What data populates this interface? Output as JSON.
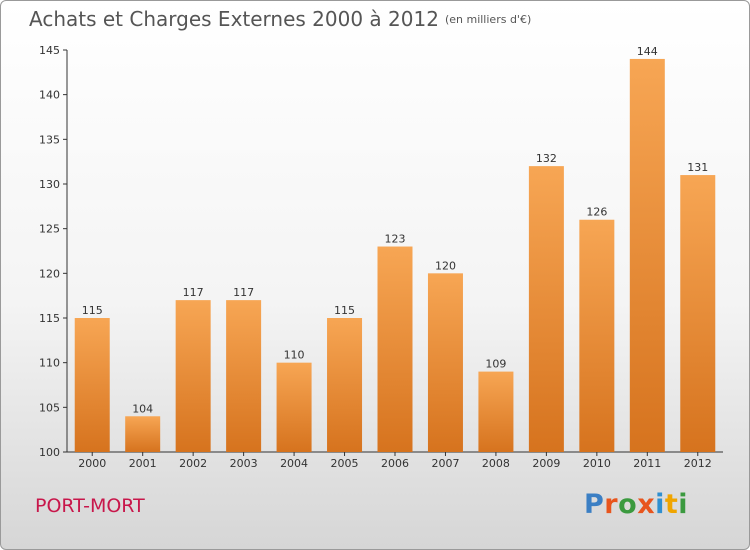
{
  "title": "Achats et Charges Externes 2000 à 2012",
  "subtitle": "(en milliers d'€)",
  "place": "PORT-MORT",
  "logo": "Proxiti",
  "colors": {
    "bar_top": "#f7a654",
    "bar_bottom": "#d6731e",
    "place": "#c8174b"
  },
  "chart_data": {
    "type": "bar",
    "categories": [
      "2000",
      "2001",
      "2002",
      "2003",
      "2004",
      "2005",
      "2006",
      "2007",
      "2008",
      "2009",
      "2010",
      "2011",
      "2012"
    ],
    "values": [
      115,
      104,
      117,
      117,
      110,
      115,
      123,
      120,
      109,
      132,
      126,
      144,
      131
    ],
    "ylim": [
      100,
      145
    ],
    "yticks": [
      100,
      105,
      110,
      115,
      120,
      125,
      130,
      135,
      140,
      145
    ],
    "grid": false,
    "xlabel": "",
    "ylabel": ""
  }
}
